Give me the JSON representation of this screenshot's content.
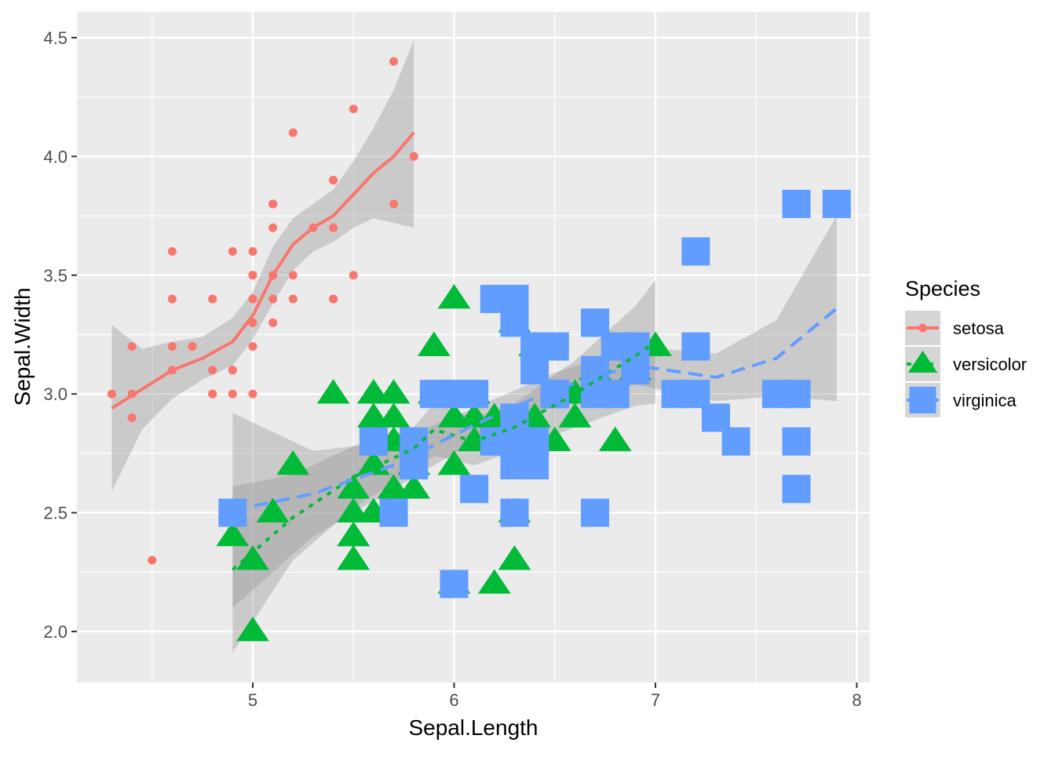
{
  "chart_data": {
    "type": "scatter",
    "xlabel": "Sepal.Length",
    "ylabel": "Sepal.Width",
    "xlim": [
      4.18,
      8.12
    ],
    "ylim": [
      1.79,
      4.61
    ],
    "xticks": [
      5,
      6,
      7,
      8
    ],
    "yticks": [
      2.0,
      2.5,
      3.0,
      3.5,
      4.0,
      4.5
    ],
    "xtick_labels": [
      "5",
      "6",
      "7",
      "8"
    ],
    "ytick_labels": [
      "2.0",
      "2.5",
      "3.0",
      "3.5",
      "4.0",
      "4.5"
    ],
    "grid": true,
    "legend": {
      "title": "Species",
      "position": "right"
    },
    "series": [
      {
        "name": "setosa",
        "color": "#F8766D",
        "shape": "circle",
        "line": "solid",
        "x": [
          5.1,
          4.9,
          4.7,
          4.6,
          5.0,
          5.4,
          4.6,
          5.0,
          4.4,
          4.9,
          5.4,
          4.8,
          4.8,
          4.3,
          5.8,
          5.7,
          5.4,
          5.1,
          5.7,
          5.1,
          5.4,
          5.1,
          4.6,
          5.1,
          4.8,
          5.0,
          5.0,
          5.2,
          5.2,
          4.7,
          4.8,
          5.4,
          5.2,
          5.5,
          4.9,
          5.0,
          5.5,
          4.9,
          4.4,
          5.1,
          5.0,
          4.5,
          4.4,
          5.0,
          5.1,
          4.8,
          5.1,
          4.6,
          5.3,
          5.0
        ],
        "y": [
          3.5,
          3.0,
          3.2,
          3.1,
          3.6,
          3.9,
          3.4,
          3.4,
          2.9,
          3.1,
          3.7,
          3.4,
          3.0,
          3.0,
          4.0,
          4.4,
          3.9,
          3.5,
          3.8,
          3.8,
          3.4,
          3.7,
          3.6,
          3.3,
          3.4,
          3.0,
          3.4,
          3.5,
          3.4,
          3.2,
          3.1,
          3.4,
          4.1,
          4.2,
          3.1,
          3.2,
          3.5,
          3.6,
          3.0,
          3.4,
          3.5,
          2.3,
          3.2,
          3.5,
          3.8,
          3.0,
          3.8,
          3.2,
          3.7,
          3.3
        ],
        "smooth": {
          "x": [
            4.3,
            4.45,
            4.6,
            4.75,
            4.9,
            5.0,
            5.1,
            5.2,
            5.3,
            5.4,
            5.5,
            5.6,
            5.7,
            5.8
          ],
          "y": [
            2.94,
            3.02,
            3.1,
            3.15,
            3.22,
            3.33,
            3.5,
            3.63,
            3.7,
            3.75,
            3.84,
            3.93,
            4.0,
            4.1
          ],
          "lower": [
            2.59,
            2.85,
            2.98,
            3.06,
            3.12,
            3.23,
            3.38,
            3.52,
            3.6,
            3.64,
            3.7,
            3.74,
            3.72,
            3.7
          ],
          "upper": [
            3.29,
            3.19,
            3.22,
            3.24,
            3.32,
            3.43,
            3.62,
            3.74,
            3.8,
            3.86,
            3.98,
            4.12,
            4.28,
            4.49
          ]
        }
      },
      {
        "name": "versicolor",
        "color": "#00BA38",
        "shape": "triangle",
        "line": "dotted",
        "x": [
          7.0,
          6.4,
          6.9,
          5.5,
          6.5,
          5.7,
          6.3,
          4.9,
          6.6,
          5.2,
          5.0,
          5.9,
          6.0,
          6.1,
          5.6,
          6.7,
          5.6,
          5.8,
          6.2,
          5.6,
          5.9,
          6.1,
          6.3,
          6.1,
          6.4,
          6.6,
          6.8,
          6.7,
          6.0,
          5.7,
          5.5,
          5.5,
          5.8,
          6.0,
          5.4,
          6.0,
          6.7,
          6.3,
          5.6,
          5.5,
          5.5,
          6.1,
          5.8,
          5.0,
          5.6,
          5.7,
          5.7,
          6.2,
          5.1,
          5.7
        ],
        "y": [
          3.2,
          3.2,
          3.1,
          2.3,
          2.8,
          2.8,
          3.3,
          2.4,
          2.9,
          2.7,
          2.0,
          3.0,
          2.2,
          2.9,
          2.9,
          3.1,
          3.0,
          2.7,
          2.2,
          2.5,
          3.2,
          2.8,
          2.5,
          2.8,
          2.9,
          3.0,
          2.8,
          3.0,
          2.9,
          2.6,
          2.4,
          2.4,
          2.7,
          2.7,
          3.0,
          3.4,
          3.1,
          2.3,
          3.0,
          2.5,
          2.6,
          3.0,
          2.6,
          2.3,
          2.7,
          3.0,
          2.9,
          2.9,
          2.5,
          2.8
        ],
        "smooth": {
          "x": [
            4.9,
            5.2,
            5.5,
            5.8,
            5.9,
            6.1,
            6.3,
            6.6,
            6.9,
            7.0
          ],
          "y": [
            2.26,
            2.48,
            2.65,
            2.77,
            2.85,
            2.8,
            2.86,
            3.0,
            3.16,
            3.22
          ],
          "lower": [
            1.91,
            2.3,
            2.52,
            2.68,
            2.74,
            2.7,
            2.76,
            2.86,
            2.95,
            2.96
          ],
          "upper": [
            2.61,
            2.66,
            2.78,
            2.86,
            2.96,
            2.9,
            2.96,
            3.14,
            3.37,
            3.48
          ]
        }
      },
      {
        "name": "virginica",
        "color": "#619CFF",
        "shape": "square",
        "line": "dashed",
        "x": [
          6.3,
          5.8,
          7.1,
          6.3,
          6.5,
          7.6,
          4.9,
          7.3,
          6.7,
          7.2,
          6.5,
          6.4,
          6.8,
          5.7,
          5.8,
          6.4,
          6.5,
          7.7,
          7.7,
          6.0,
          6.9,
          5.6,
          7.7,
          6.3,
          6.7,
          7.2,
          6.2,
          6.1,
          6.4,
          7.2,
          7.4,
          7.9,
          6.4,
          6.3,
          6.1,
          7.7,
          6.3,
          6.4,
          6.0,
          6.9,
          6.7,
          6.9,
          5.8,
          6.8,
          6.7,
          6.7,
          6.3,
          6.5,
          6.2,
          5.9
        ],
        "y": [
          3.3,
          2.7,
          3.0,
          2.9,
          3.0,
          3.0,
          2.5,
          2.9,
          2.5,
          3.6,
          3.2,
          2.7,
          3.0,
          2.5,
          2.8,
          3.2,
          3.0,
          3.8,
          2.6,
          2.2,
          3.2,
          2.8,
          2.8,
          2.7,
          3.3,
          3.2,
          2.8,
          3.0,
          2.8,
          3.0,
          2.8,
          3.8,
          2.8,
          2.8,
          2.6,
          3.0,
          3.4,
          3.1,
          3.0,
          3.1,
          3.1,
          3.1,
          2.7,
          3.2,
          3.3,
          3.0,
          2.5,
          3.0,
          3.4,
          3.0
        ],
        "smooth": {
          "x": [
            4.9,
            5.3,
            5.7,
            6.1,
            6.5,
            6.9,
            7.3,
            7.6,
            7.9
          ],
          "y": [
            2.51,
            2.58,
            2.7,
            2.87,
            3.02,
            3.12,
            3.07,
            3.15,
            3.36
          ],
          "lower": [
            2.1,
            2.4,
            2.6,
            2.8,
            2.95,
            3.04,
            2.97,
            2.99,
            2.97
          ],
          "upper": [
            2.92,
            2.76,
            2.8,
            2.94,
            3.09,
            3.2,
            3.17,
            3.31,
            3.75
          ]
        }
      }
    ]
  }
}
